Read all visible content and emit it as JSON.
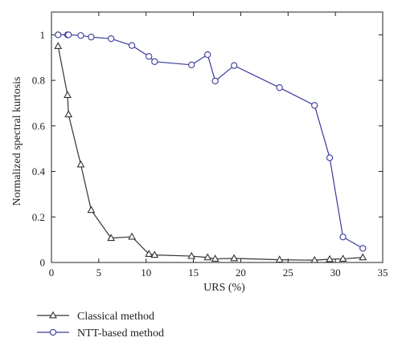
{
  "chart_data": {
    "type": "line",
    "xlabel": "URS (%)",
    "ylabel": "Normalized spectral kurtosis",
    "xlim": [
      0,
      35
    ],
    "ylim": [
      0,
      1.1
    ],
    "x_ticks": [
      "0",
      "5",
      "10",
      "15",
      "20",
      "25",
      "30",
      "35"
    ],
    "y_ticks": [
      "0",
      "0.2",
      "0.4",
      "0.6",
      "0.8",
      "1"
    ],
    "grid": false,
    "legend_placement": "bottom-left, below plot",
    "series": [
      {
        "name": "Classical method",
        "marker": "triangle",
        "color": "#333333",
        "x": [
          0.7,
          1.7,
          1.8,
          3.1,
          4.2,
          6.3,
          8.5,
          10.3,
          10.9,
          14.8,
          16.5,
          17.3,
          19.3,
          24.1,
          27.8,
          29.4,
          30.8,
          32.9
        ],
        "y": [
          0.95,
          0.735,
          0.65,
          0.43,
          0.23,
          0.107,
          0.113,
          0.037,
          0.033,
          0.028,
          0.022,
          0.016,
          0.018,
          0.012,
          0.01,
          0.014,
          0.016,
          0.022
        ]
      },
      {
        "name": "NTT-based method",
        "marker": "circle",
        "color": "#3a3a9a",
        "x": [
          0.7,
          1.7,
          1.8,
          3.1,
          4.2,
          6.3,
          8.5,
          10.3,
          10.9,
          14.8,
          16.5,
          17.3,
          19.3,
          24.1,
          27.8,
          29.4,
          30.8,
          32.9
        ],
        "y": [
          1.0,
          1.0,
          1.0,
          0.997,
          0.99,
          0.983,
          0.953,
          0.905,
          0.882,
          0.868,
          0.913,
          0.797,
          0.865,
          0.768,
          0.69,
          0.46,
          0.112,
          0.062
        ]
      }
    ]
  }
}
